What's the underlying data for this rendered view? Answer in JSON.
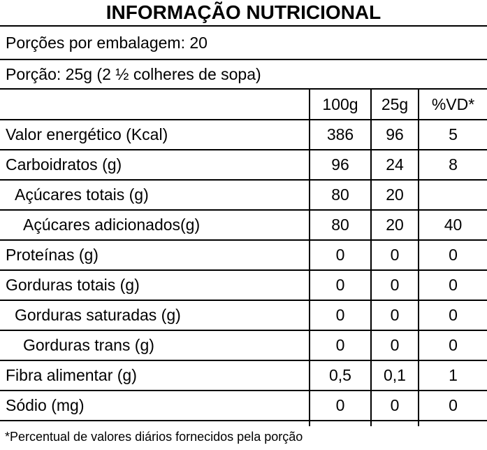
{
  "title": "INFORMAÇÃO NUTRICIONAL",
  "servings_line": "Porções por embalagem: 20",
  "portion_line": "Porção: 25g (2 ½ colheres de sopa)",
  "table": {
    "columns": [
      "100g",
      "25g",
      "%VD*"
    ],
    "rows": [
      {
        "label": "Valor energético (Kcal)",
        "indent": 0,
        "values": [
          "386",
          "96",
          "5"
        ]
      },
      {
        "label": "Carboidratos (g)",
        "indent": 0,
        "values": [
          "96",
          "24",
          "8"
        ]
      },
      {
        "label": "Açúcares totais (g)",
        "indent": 1,
        "values": [
          "80",
          "20",
          ""
        ]
      },
      {
        "label": "Açúcares adicionados(g)",
        "indent": 2,
        "values": [
          "80",
          "20",
          "40"
        ]
      },
      {
        "label": "Proteínas (g)",
        "indent": 0,
        "values": [
          "0",
          "0",
          "0"
        ]
      },
      {
        "label": "Gorduras totais (g)",
        "indent": 0,
        "values": [
          "0",
          "0",
          "0"
        ]
      },
      {
        "label": "Gorduras saturadas (g)",
        "indent": 1,
        "values": [
          "0",
          "0",
          "0"
        ]
      },
      {
        "label": "Gorduras trans (g)",
        "indent": 2,
        "values": [
          "0",
          "0",
          "0"
        ]
      },
      {
        "label": "Fibra alimentar (g)",
        "indent": 0,
        "values": [
          "0,5",
          "0,1",
          "1"
        ]
      },
      {
        "label": "Sódio (mg)",
        "indent": 0,
        "values": [
          "0",
          "0",
          "0"
        ]
      }
    ]
  },
  "footnote": "*Percentual de valores diários fornecidos pela porção",
  "colors": {
    "text": "#000000",
    "background": "#ffffff",
    "line": "#000000"
  }
}
